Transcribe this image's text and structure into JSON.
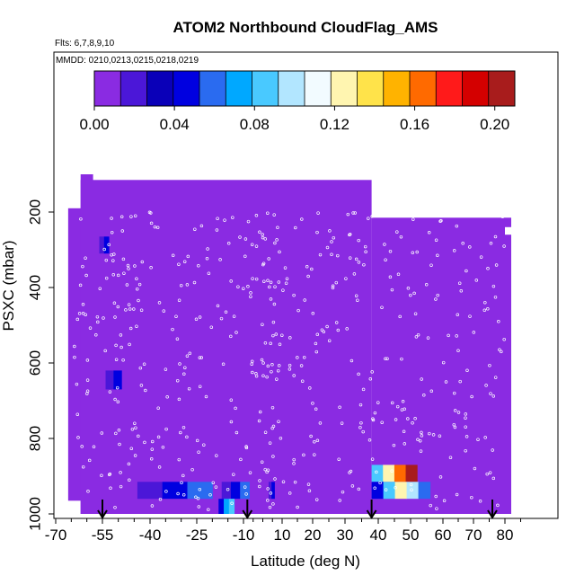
{
  "chart_data": {
    "type": "heatmap",
    "title": "ATOM2 Northbound CloudFlag_AMS",
    "subtitle_flights": "Flts: 6,7,8,9,10",
    "subtitle_dates": "MMDD: 0210,0213,0215,0218,0219",
    "xlabel": "Latitude (deg N)",
    "ylabel": "PSXC (mbar)",
    "xlim": [
      -70,
      85
    ],
    "ylim": [
      1000,
      50
    ],
    "x_ticks": [
      -70,
      -55,
      -40,
      -25,
      -10,
      10,
      20,
      30,
      40,
      50,
      60,
      70,
      80
    ],
    "x_tick_labels": [
      "-70",
      "-55",
      "-40",
      "-25",
      "-10",
      "10",
      "20",
      "30",
      "40",
      "50",
      "60",
      "70",
      "80"
    ],
    "y_ticks": [
      200,
      400,
      600,
      800,
      1000
    ],
    "y_tick_labels": [
      "200",
      "400",
      "600",
      "800",
      "1000"
    ],
    "colorbar": {
      "min": 0.0,
      "max": 0.21,
      "ticks": [
        0.0,
        0.04,
        0.08,
        0.12,
        0.16,
        0.2
      ],
      "tick_labels": [
        "0.00",
        "0.04",
        "0.08",
        "0.12",
        "0.16",
        "0.20"
      ],
      "colors": [
        "#8a2be2",
        "#4b17d8",
        "#0a00b8",
        "#0000e0",
        "#2a6bf0",
        "#00a8ff",
        "#49c9ff",
        "#b2e6ff",
        "#f2fbff",
        "#fff5b0",
        "#ffe34a",
        "#ffb300",
        "#ff6a00",
        "#ff1a1a",
        "#d40000",
        "#a81c1c"
      ]
    },
    "background_value": 0.0,
    "fill_regions": [
      {
        "lat": [
          -62,
          -56
        ],
        "p": [
          1000,
          190
        ],
        "value": 0.0
      },
      {
        "lat": [
          -66,
          -44
        ],
        "p": [
          965,
          190
        ],
        "value": 0.0
      },
      {
        "lat": [
          -62,
          38
        ],
        "p": [
          1000,
          115
        ],
        "value": 0.0
      },
      {
        "lat": [
          38,
          80
        ],
        "p": [
          1000,
          215
        ],
        "value": 0.0
      },
      {
        "lat": [
          80,
          82
        ],
        "p": [
          1000,
          260
        ],
        "value": 0.0
      },
      {
        "lat": [
          -62,
          -58
        ],
        "p": [
          215,
          100
        ],
        "value": 0.0
      },
      {
        "lat": [
          80,
          82
        ],
        "p": [
          240,
          215
        ],
        "value": 0.0
      }
    ],
    "hot_regions": [
      {
        "lat": [
          -56,
          -53
        ],
        "p": [
          310,
          265
        ],
        "values": [
          0.02,
          0.04
        ]
      },
      {
        "lat": [
          -54,
          -49
        ],
        "p": [
          670,
          620
        ],
        "values": [
          0.02,
          0.04
        ]
      },
      {
        "lat": [
          -44,
          -20
        ],
        "p": [
          960,
          915
        ],
        "values": [
          0.02,
          0.04,
          0.06
        ]
      },
      {
        "lat": [
          -17,
          -7
        ],
        "p": [
          960,
          915
        ],
        "values": [
          0.02,
          0.04,
          0.06
        ]
      },
      {
        "lat": [
          -18,
          -13
        ],
        "p": [
          1000,
          960
        ],
        "values": [
          0.04,
          0.07,
          0.09
        ]
      },
      {
        "lat": [
          3,
          6
        ],
        "p": [
          960,
          915
        ],
        "values": [
          0.02,
          0.04
        ]
      },
      {
        "lat": [
          38,
          52
        ],
        "p": [
          915,
          870
        ],
        "values": [
          0.08,
          0.12,
          0.16,
          0.2
        ]
      },
      {
        "lat": [
          38,
          56
        ],
        "p": [
          960,
          915
        ],
        "values": [
          0.04,
          0.08,
          0.12,
          0.1,
          0.06
        ]
      }
    ],
    "arrows_at_lat": [
      -55,
      -8,
      38,
      76
    ],
    "legend": "none",
    "grid": false
  }
}
